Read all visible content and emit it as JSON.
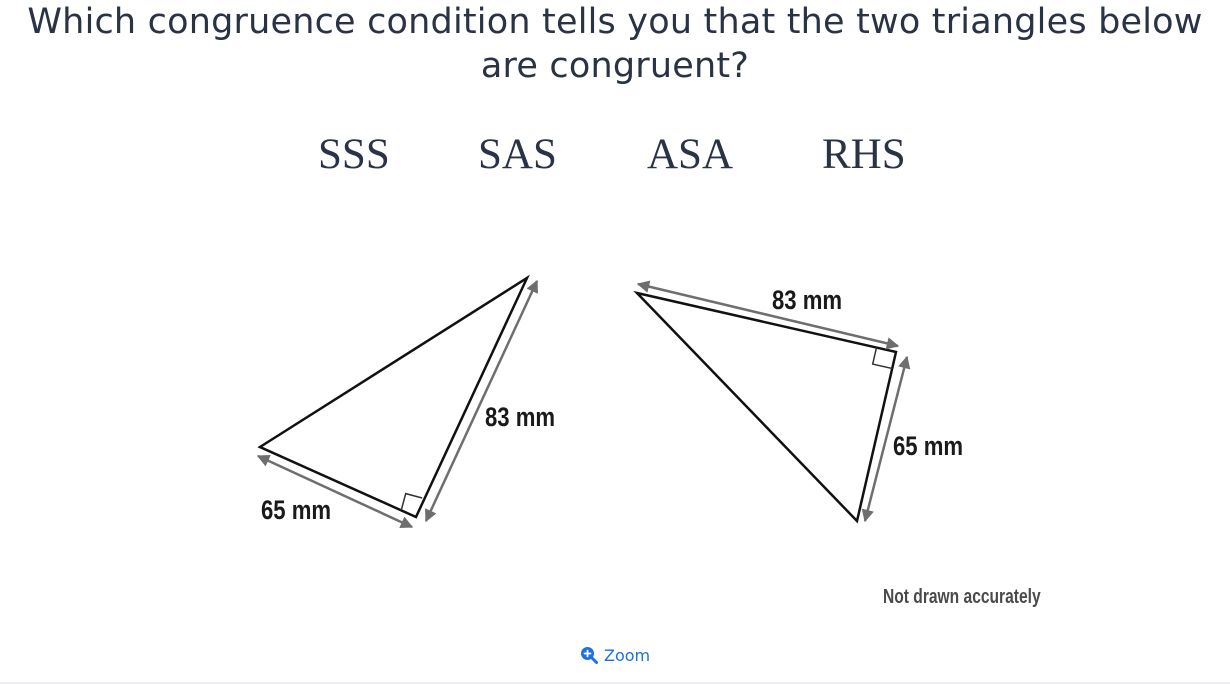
{
  "question": "Which congruence condition tells you that the two triangles below are congruent?",
  "options": [
    "SSS",
    "SAS",
    "ASA",
    "RHS"
  ],
  "figure": {
    "left_triangle": {
      "leg_label": "65 mm",
      "hypotenuse_label": "83 mm",
      "right_angle": true
    },
    "right_triangle": {
      "hypotenuse_label": "83 mm",
      "leg_label": "65 mm",
      "right_angle": true
    },
    "note": "Not drawn accurately"
  },
  "zoom": {
    "label": "Zoom",
    "icon": "zoom-in-icon",
    "color": "#1f6fe0"
  }
}
